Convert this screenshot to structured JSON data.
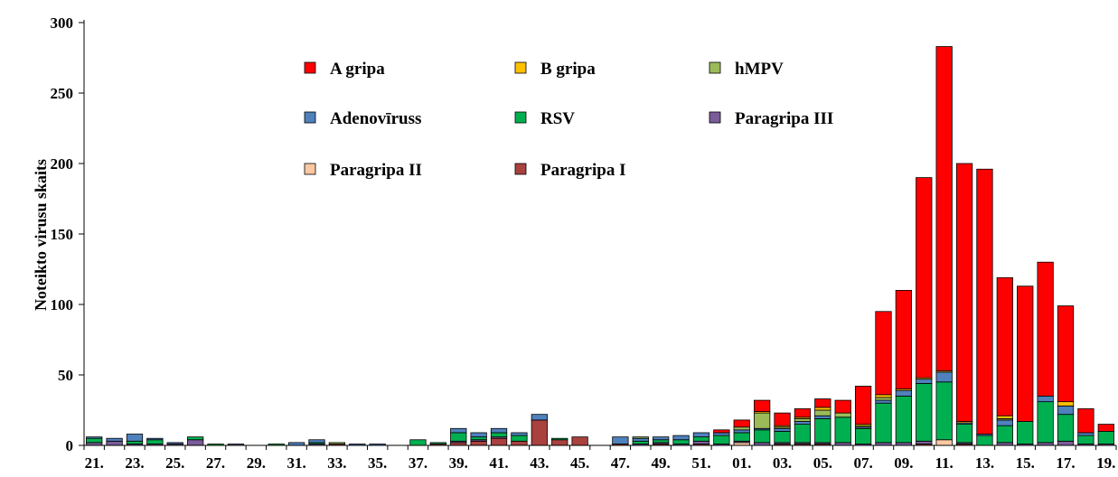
{
  "chart_data": {
    "type": "bar",
    "stacked": true,
    "title": "",
    "xlabel": "",
    "ylabel": "Noteikto virusu skaits",
    "ylim": [
      0,
      300
    ],
    "yticks": [
      0,
      50,
      100,
      150,
      200,
      250,
      300
    ],
    "grid": false,
    "legend_position": "top-center",
    "categories": [
      "21.",
      "22.",
      "23.",
      "24.",
      "25.",
      "26.",
      "27.",
      "28.",
      "29.",
      "30.",
      "31.",
      "32.",
      "33.",
      "34.",
      "35.",
      "36.",
      "37.",
      "38.",
      "39.",
      "40.",
      "41.",
      "42.",
      "43.",
      "44.",
      "45.",
      "46.",
      "47.",
      "48.",
      "49.",
      "50.",
      "51.",
      "52.",
      "01.",
      "02.",
      "03.",
      "04.",
      "05.",
      "06.",
      "07.",
      "08.",
      "09.",
      "10.",
      "11.",
      "12.",
      "13.",
      "14.",
      "15.",
      "16.",
      "17.",
      "18.",
      "19."
    ],
    "xtick_labels": [
      "21.",
      "",
      "23.",
      "",
      "25.",
      "",
      "27.",
      "",
      "29.",
      "",
      "31.",
      "",
      "33.",
      "",
      "35.",
      "",
      "37.",
      "",
      "39.",
      "",
      "41.",
      "",
      "43.",
      "",
      "45.",
      "",
      "47.",
      "",
      "49.",
      "",
      "51.",
      "",
      "01.",
      "",
      "03.",
      "",
      "05.",
      "",
      "07.",
      "",
      "09.",
      "",
      "11.",
      "",
      "13.",
      "",
      "15.",
      "",
      "17.",
      "",
      "19."
    ],
    "series": [
      {
        "name": "Paragripa II",
        "color": "#fcc8a2",
        "values": [
          0,
          0,
          0,
          0,
          0,
          0,
          0,
          0,
          0,
          0,
          0,
          0,
          0,
          0,
          0,
          0,
          0,
          0,
          0,
          0,
          0,
          0,
          0,
          0,
          0,
          0,
          0,
          0,
          0,
          0,
          0,
          0,
          2,
          0,
          0,
          0,
          0,
          0,
          0,
          0,
          0,
          0,
          4,
          0,
          0,
          0,
          0,
          0,
          0,
          0,
          0
        ]
      },
      {
        "name": "Paragripa I",
        "color": "#a9413f",
        "values": [
          0,
          0,
          0,
          0,
          0,
          0,
          0,
          0,
          0,
          0,
          0,
          0,
          1,
          0,
          0,
          0,
          0,
          1,
          2,
          3,
          5,
          3,
          18,
          4,
          6,
          0,
          1,
          0,
          1,
          0,
          1,
          0,
          0,
          0,
          1,
          1,
          1,
          0,
          0,
          0,
          0,
          1,
          0,
          1,
          0,
          0,
          0,
          0,
          0,
          0,
          0
        ]
      },
      {
        "name": "Paragripa III",
        "color": "#7a5c99",
        "values": [
          2,
          3,
          1,
          1,
          1,
          4,
          0,
          1,
          0,
          0,
          0,
          1,
          0,
          0,
          0,
          0,
          0,
          0,
          1,
          1,
          1,
          0,
          0,
          0,
          0,
          0,
          0,
          1,
          1,
          1,
          2,
          1,
          1,
          2,
          1,
          1,
          1,
          2,
          1,
          2,
          2,
          2,
          0,
          1,
          0,
          2,
          1,
          2,
          3,
          1,
          1
        ]
      },
      {
        "name": "RSV",
        "color": "#00b050",
        "values": [
          3,
          0,
          2,
          3,
          0,
          2,
          1,
          0,
          0,
          1,
          0,
          1,
          0,
          0,
          0,
          0,
          4,
          1,
          6,
          2,
          3,
          4,
          0,
          1,
          0,
          0,
          0,
          2,
          2,
          3,
          3,
          6,
          6,
          9,
          8,
          13,
          17,
          18,
          11,
          28,
          33,
          41,
          41,
          13,
          7,
          12,
          16,
          29,
          19,
          6,
          9
        ]
      },
      {
        "name": "Adenovīruss",
        "color": "#4f81bd",
        "values": [
          1,
          2,
          5,
          1,
          1,
          0,
          0,
          0,
          0,
          0,
          2,
          2,
          0,
          1,
          1,
          0,
          0,
          0,
          3,
          3,
          3,
          2,
          4,
          0,
          0,
          0,
          5,
          2,
          2,
          3,
          3,
          2,
          2,
          1,
          2,
          2,
          2,
          0,
          1,
          2,
          4,
          3,
          7,
          1,
          1,
          4,
          0,
          4,
          6,
          2,
          0
        ]
      },
      {
        "name": "hMPV",
        "color": "#9bbb59",
        "values": [
          0,
          0,
          0,
          0,
          0,
          0,
          0,
          0,
          0,
          0,
          0,
          0,
          1,
          0,
          0,
          0,
          0,
          0,
          0,
          0,
          0,
          0,
          0,
          0,
          0,
          0,
          0,
          1,
          0,
          0,
          0,
          0,
          2,
          11,
          1,
          2,
          4,
          3,
          1,
          2,
          0,
          0,
          0,
          0,
          0,
          1,
          0,
          0,
          0,
          0,
          0
        ]
      },
      {
        "name": "B gripa",
        "color": "#ffc000",
        "values": [
          0,
          0,
          0,
          0,
          0,
          0,
          0,
          0,
          0,
          0,
          0,
          0,
          0,
          0,
          0,
          0,
          0,
          0,
          0,
          0,
          0,
          0,
          0,
          0,
          0,
          0,
          0,
          0,
          0,
          0,
          0,
          0,
          0,
          1,
          1,
          1,
          2,
          0,
          1,
          2,
          1,
          1,
          1,
          1,
          0,
          2,
          0,
          0,
          3,
          0,
          0
        ]
      },
      {
        "name": "A gripa",
        "color": "#ff0000",
        "values": [
          0,
          0,
          0,
          0,
          0,
          0,
          0,
          0,
          0,
          0,
          0,
          0,
          0,
          0,
          0,
          0,
          0,
          0,
          0,
          0,
          0,
          0,
          0,
          0,
          0,
          0,
          0,
          0,
          0,
          0,
          0,
          2,
          5,
          8,
          9,
          6,
          6,
          9,
          27,
          59,
          70,
          142,
          230,
          183,
          188,
          98,
          96,
          95,
          68,
          17,
          5
        ]
      }
    ],
    "legend": [
      {
        "series": "A gripa"
      },
      {
        "series": "B gripa"
      },
      {
        "series": "hMPV"
      },
      {
        "series": "Adenovīruss"
      },
      {
        "series": "RSV"
      },
      {
        "series": "Paragripa III"
      },
      {
        "series": "Paragripa II"
      },
      {
        "series": "Paragripa I"
      }
    ]
  }
}
